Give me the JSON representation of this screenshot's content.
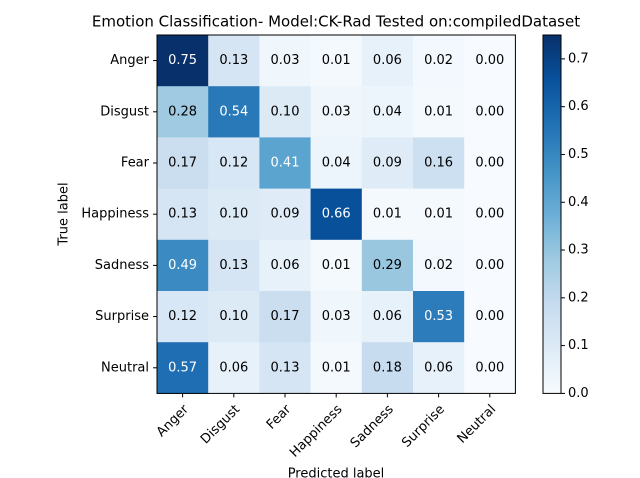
{
  "chart_data": {
    "type": "heatmap",
    "title": "Emotion Classification- Model:CK-Rad Tested on:compiledDataset",
    "x_label": "Predicted label",
    "y_label": "True label",
    "rows": [
      "Anger",
      "Disgust",
      "Fear",
      "Happiness",
      "Sadness",
      "Surprise",
      "Neutral"
    ],
    "columns": [
      "Anger",
      "Disgust",
      "Fear",
      "Happiness",
      "Sadness",
      "Surprise",
      "Neutral"
    ],
    "values": [
      [
        0.75,
        0.13,
        0.03,
        0.01,
        0.06,
        0.02,
        0
      ],
      [
        0.28,
        0.54,
        0.1,
        0.03,
        0.04,
        0.01,
        0
      ],
      [
        0.17,
        0.12,
        0.41,
        0.04,
        0.09,
        0.16,
        0
      ],
      [
        0.13,
        0.1,
        0.09,
        0.66,
        0.01,
        0.01,
        0
      ],
      [
        0.49,
        0.13,
        0.06,
        0.01,
        0.29,
        0.02,
        0
      ],
      [
        0.12,
        0.1,
        0.17,
        0.03,
        0.06,
        0.53,
        0
      ],
      [
        0.57,
        0.06,
        0.13,
        0.01,
        0.18,
        0.06,
        0
      ]
    ],
    "value_labels": [
      [
        "0.75",
        "0.13",
        "0.03",
        "0.01",
        "0.06",
        "0.02",
        "0.00"
      ],
      [
        "0.28",
        "0.54",
        "0.10",
        "0.03",
        "0.04",
        "0.01",
        "0.00"
      ],
      [
        "0.17",
        "0.12",
        "0.41",
        "0.04",
        "0.09",
        "0.16",
        "0.00"
      ],
      [
        "0.13",
        "0.10",
        "0.09",
        "0.66",
        "0.01",
        "0.01",
        "0.00"
      ],
      [
        "0.49",
        "0.13",
        "0.06",
        "0.01",
        "0.29",
        "0.02",
        "0.00"
      ],
      [
        "0.12",
        "0.10",
        "0.17",
        "0.03",
        "0.06",
        "0.53",
        "0.00"
      ],
      [
        "0.57",
        "0.06",
        "0.13",
        "0.01",
        "0.18",
        "0.06",
        "0.00"
      ]
    ],
    "colormap": "Blues",
    "clim": [
      0,
      0.75
    ],
    "cticks": [
      {
        "value": 0,
        "label": "0.0"
      },
      {
        "value": 0.1,
        "label": "0.1"
      },
      {
        "value": 0.2,
        "label": "0.2"
      },
      {
        "value": 0.3,
        "label": "0.3"
      },
      {
        "value": 0.4,
        "label": "0.4"
      },
      {
        "value": 0.5,
        "label": "0.5"
      },
      {
        "value": 0.6,
        "label": "0.6"
      },
      {
        "value": 0.7,
        "label": "0.7"
      }
    ]
  }
}
